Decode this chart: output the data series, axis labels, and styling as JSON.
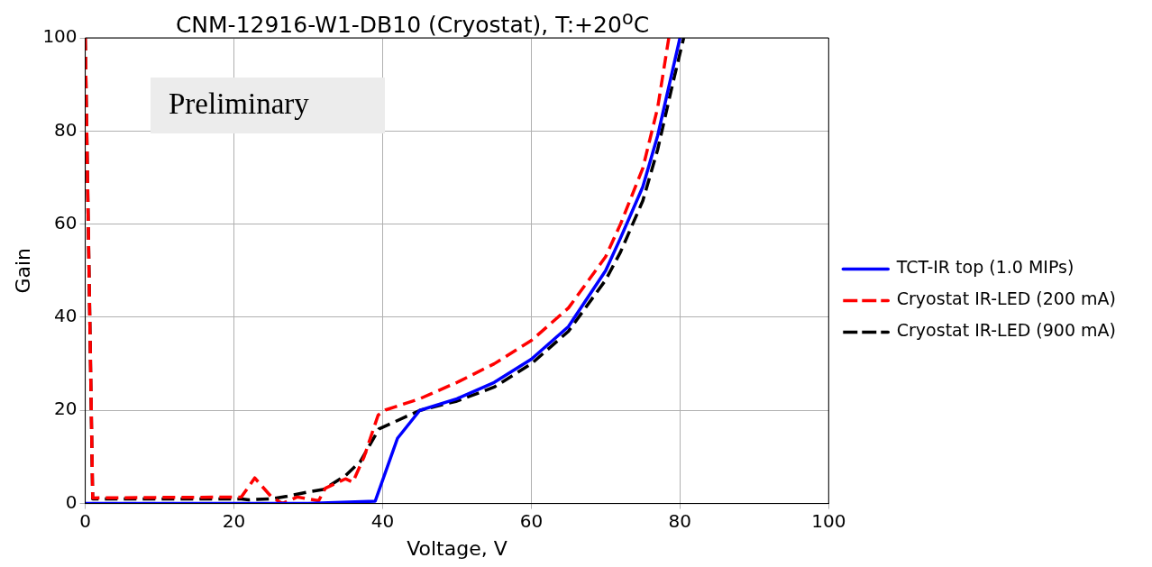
{
  "chart_data": {
    "type": "line",
    "title": "CNM-12916-W1-DB10 (Cryostat), T:+20$^{o}$C",
    "xlabel": "Voltage, V",
    "ylabel": "Gain",
    "xlim": [
      0,
      100
    ],
    "xticks": [
      0,
      20,
      40,
      60,
      80,
      100
    ],
    "ylim": [
      0,
      100
    ],
    "yticks": [
      0,
      20,
      40,
      60,
      80,
      100
    ],
    "grid": true,
    "legend": "right",
    "marker": "none",
    "annotations": [
      "Preliminary"
    ],
    "series": [
      {
        "name": "TCT-IR top (1.0 MIPs)",
        "color": "#0000ff",
        "line_style": "solid",
        "x": [
          0,
          10,
          20,
          30,
          39,
          42,
          45,
          50,
          55,
          60,
          65,
          70,
          72,
          75,
          77,
          79,
          80
        ],
        "values": [
          0,
          0,
          0,
          0,
          0.5,
          14,
          20,
          22.5,
          26,
          31,
          38,
          50,
          57,
          68,
          79,
          93,
          100
        ]
      },
      {
        "name": "Cryostat IR-LED (200 mA)",
        "color": "#ff0000",
        "line_style": "dashed",
        "x": [
          0,
          1,
          10,
          21,
          22.8,
          25,
          26.5,
          28.5,
          30,
          31.4,
          32.3,
          35,
          36,
          37.5,
          39.4,
          40.4,
          45,
          50,
          55,
          60,
          65,
          70,
          72,
          75,
          77,
          78.5
        ],
        "values": [
          100,
          1.2,
          1.3,
          1.4,
          5.5,
          1.5,
          0,
          1.4,
          1,
          0.6,
          3.3,
          5.3,
          4.6,
          10,
          19,
          20.1,
          22.5,
          26,
          30,
          35,
          42,
          53,
          60,
          72,
          85,
          100
        ]
      },
      {
        "name": "Cryostat IR-LED (900 mA)",
        "color": "#000000",
        "line_style": "dashed",
        "x": [
          0,
          1,
          10,
          21,
          22,
          25,
          27,
          30,
          32,
          35,
          37,
          39.5,
          45,
          50,
          55,
          60,
          65,
          70,
          72,
          75,
          77,
          79,
          80.5
        ],
        "values": [
          100,
          1,
          1,
          1,
          0.8,
          1,
          1.5,
          2.5,
          3,
          6,
          9,
          16,
          20,
          22,
          25,
          30,
          37,
          48,
          54,
          65,
          76,
          90,
          100
        ]
      }
    ]
  }
}
